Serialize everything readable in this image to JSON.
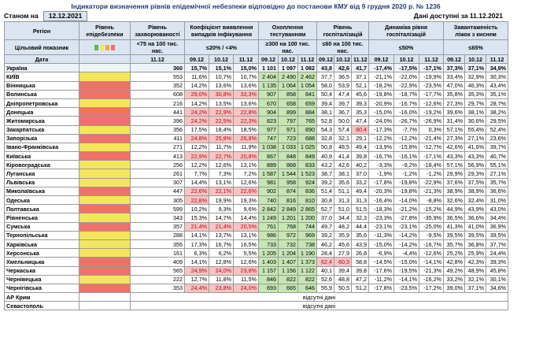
{
  "header": {
    "title": "Індикатори визначення рівнів епідемічної небезпеки відповідно до постанови КМУ від 9 грудня 2020 р. № 1236",
    "as_of_label": "Станом на",
    "as_of": "12.12.2021",
    "available": "Дані доступні за 11.12.2021"
  },
  "table": {
    "columns": [
      "Регіон",
      "Рівень епідебезпеки",
      "Рівень захворюваності",
      "Коефіцієнт виявлення випадків інфікування",
      "Охоплення тестуванням",
      "Рівень госпіталізацій",
      "Динаміка рівня госпіталізацій",
      "Завантаженість ліжок з киснем"
    ],
    "target_label": "Цільовий показник",
    "targets": [
      "<75 на 100 тис. нас.",
      "≤20% / <4%",
      "≥300 на 100 тис. нас.",
      "≤60 на 100 тис. нас.",
      "≤50%",
      "≤65%"
    ],
    "date_label": "Дата",
    "dates": [
      "11.12",
      "09.12",
      "10.12",
      "11.12",
      "09.12",
      "10.12",
      "11.12",
      "09.12",
      "10.12",
      "11.12",
      "09.12",
      "10.12",
      "11.12",
      "09.12",
      "10.12",
      "11.12"
    ],
    "rows": [
      {
        "region": "Україна",
        "values": [
          "360",
          "15,7%",
          "15,1%",
          "15,0%",
          "1 101",
          "1 097",
          "1 082",
          "43,8",
          "42,6",
          "41,7",
          "-17,4%",
          "-17,5%",
          "-17,1%",
          "37,3%",
          "37,1%",
          "34,9%"
        ]
      },
      {
        "region": "КИЇВ",
        "level": "#f3e65a",
        "values": [
          "553",
          "11,6%",
          "10,7%",
          "10,7%",
          "2 404",
          "2 490",
          "2 462",
          "37,7",
          "36,5",
          "37,1",
          "-21,1%",
          "-22,0%",
          "-19,9%",
          "33,4%",
          "32,9%",
          "30,3%"
        ]
      },
      {
        "region": "Вінницька",
        "level": "#f0706a",
        "values": [
          "352",
          "14,2%",
          "13,6%",
          "13,6%",
          "1 135",
          "1 064",
          "1 054",
          "58,0",
          "53,9",
          "52,1",
          "-18,2%",
          "-22,9%",
          "-23,5%",
          "47,0%",
          "46,3%",
          "43,4%"
        ]
      },
      {
        "region": "Волинська",
        "level": "#f0706a",
        "pink": [
          1,
          2,
          3
        ],
        "values": [
          "608",
          "29,0%",
          "30,8%",
          "32,3%",
          "907",
          "858",
          "841",
          "50,4",
          "47,4",
          "45,6",
          "-19,8%",
          "-18,7%",
          "-17,7%",
          "35,8%",
          "35,3%",
          "35,1%"
        ]
      },
      {
        "region": "Дніпропетровська",
        "level": "#f3e65a",
        "values": [
          "216",
          "14,2%",
          "13,5%",
          "13,6%",
          "670",
          "658",
          "659",
          "39,4",
          "39,7",
          "39,3",
          "-20,9%",
          "-16,7%",
          "-12,6%",
          "27,3%",
          "29,7%",
          "28,7%"
        ]
      },
      {
        "region": "Донецька",
        "level": "#f0706a",
        "pink": [
          1,
          2,
          3
        ],
        "values": [
          "441",
          "24,2%",
          "22,9%",
          "22,8%",
          "904",
          "899",
          "884",
          "38,1",
          "36,7",
          "35,3",
          "-15,0%",
          "-16,0%",
          "-19,2%",
          "39,6%",
          "38,1%",
          "38,2%"
        ]
      },
      {
        "region": "Житомирська",
        "level": "#f0706a",
        "pink": [
          1,
          2,
          3
        ],
        "values": [
          "396",
          "24,2%",
          "22,5%",
          "22,3%",
          "823",
          "797",
          "765",
          "52,8",
          "50,0",
          "47,4",
          "-24,0%",
          "-26,7%",
          "-26,9%",
          "31,4%",
          "30,6%",
          "29,5%"
        ]
      },
      {
        "region": "Закарпатська",
        "level": "#f3e65a",
        "pink": [
          9
        ],
        "values": [
          "356",
          "17,5%",
          "18,4%",
          "18,5%",
          "977",
          "971",
          "890",
          "54,3",
          "57,4",
          "60,4",
          "-17,3%",
          "-7,7%",
          "0,3%",
          "57,1%",
          "55,4%",
          "52,4%"
        ]
      },
      {
        "region": "Запорізька",
        "level": "#f0706a",
        "pink": [
          1,
          2,
          3
        ],
        "values": [
          "411",
          "24,8%",
          "25,8%",
          "26,8%",
          "747",
          "723",
          "688",
          "32,8",
          "32,1",
          "29,1",
          "-12,2%",
          "-12,2%",
          "-21,4%",
          "27,3%",
          "27,1%",
          "23,6%"
        ]
      },
      {
        "region": "Івано-Франківська",
        "level": "#f3e65a",
        "values": [
          "271",
          "12,2%",
          "11,7%",
          "11,9%",
          "1 038",
          "1 033",
          "1 025",
          "50,8",
          "48,5",
          "49,4",
          "-13,9%",
          "-15,8%",
          "-12,7%",
          "42,6%",
          "41,6%",
          "39,7%"
        ]
      },
      {
        "region": "Київська",
        "level": "#f0706a",
        "pink": [
          1,
          2,
          3
        ],
        "values": [
          "413",
          "22,9%",
          "22,7%",
          "20,8%",
          "867",
          "848",
          "849",
          "40,9",
          "41,4",
          "39,8",
          "-16,7%",
          "-16,1%",
          "-17,1%",
          "43,3%",
          "43,3%",
          "40,7%"
        ]
      },
      {
        "region": "Кіровоградська",
        "level": "#f3e65a",
        "values": [
          "256",
          "12,2%",
          "12,6%",
          "13,1%",
          "889",
          "868",
          "833",
          "43,2",
          "42,6",
          "40,2",
          "-3,3%",
          "-9,2%",
          "-18,4%",
          "57,1%",
          "56,9%",
          "55,1%"
        ]
      },
      {
        "region": "Луганська",
        "level": "#f3e65a",
        "values": [
          "261",
          "7,7%",
          "7,3%",
          "7,2%",
          "1 587",
          "1 544",
          "1 523",
          "38,7",
          "38,1",
          "37,0",
          "-1,9%",
          "-1,2%",
          "-1,2%",
          "29,9%",
          "29,3%",
          "27,1%"
        ]
      },
      {
        "region": "Львівська",
        "level": "#f3e65a",
        "values": [
          "307",
          "14,4%",
          "13,1%",
          "12,6%",
          "981",
          "958",
          "924",
          "39,2",
          "35,6",
          "33,2",
          "-17,8%",
          "-19,8%",
          "-22,9%",
          "37,6%",
          "37,5%",
          "35,7%"
        ]
      },
      {
        "region": "Миколаївська",
        "level": "#f0706a",
        "pink": [
          1,
          2,
          3
        ],
        "values": [
          "447",
          "22,6%",
          "22,1%",
          "22,6%",
          "902",
          "874",
          "836",
          "51,4",
          "51,1",
          "49,4",
          "-20,3%",
          "-19,8%",
          "-21,3%",
          "38,9%",
          "38,9%",
          "36,6%"
        ]
      },
      {
        "region": "Одеська",
        "level": "#f3e65a",
        "pink": [
          1
        ],
        "values": [
          "305",
          "22,8%",
          "19,9%",
          "19,3%",
          "740",
          "816",
          "810",
          "30,8",
          "31,3",
          "31,3",
          "-16,4%",
          "-14,0%",
          "-8,8%",
          "32,6%",
          "32,4%",
          "31,0%"
        ]
      },
      {
        "region": "Полтавська",
        "level": "#f0706a",
        "values": [
          "599",
          "10,2%",
          "9,3%",
          "9,6%",
          "2 842",
          "2 849",
          "2 865",
          "52,7",
          "51,0",
          "51,5",
          "-18,3%",
          "-21,2%",
          "-15,2%",
          "44,9%",
          "43,9%",
          "43,0%"
        ]
      },
      {
        "region": "Рівненська",
        "level": "#f3e65a",
        "values": [
          "343",
          "15,3%",
          "14,7%",
          "14,4%",
          "1 249",
          "1 201",
          "1 200",
          "37,0",
          "34,4",
          "32,3",
          "-23,3%",
          "-27,8%",
          "-35,9%",
          "36,5%",
          "36,6%",
          "34,4%"
        ]
      },
      {
        "region": "Сумська",
        "level": "#f0706a",
        "pink": [
          1,
          2,
          3
        ],
        "values": [
          "357",
          "21,4%",
          "21,4%",
          "20,5%",
          "761",
          "768",
          "744",
          "49,7",
          "48,2",
          "44,4",
          "-23,1%",
          "-23,1%",
          "-25,0%",
          "41,3%",
          "41,0%",
          "36,9%"
        ]
      },
      {
        "region": "Тернопільська",
        "level": "#f3e65a",
        "values": [
          "288",
          "14,1%",
          "13,7%",
          "13,1%",
          "986",
          "972",
          "969",
          "39,2",
          "35,9",
          "35,6",
          "-11,3%",
          "-14,2%",
          "-9,5%",
          "39,5%",
          "39,5%",
          "39,5%"
        ]
      },
      {
        "region": "Харківська",
        "level": "#f3e65a",
        "values": [
          "355",
          "17,3%",
          "16,7%",
          "16,5%",
          "733",
          "732",
          "738",
          "46,2",
          "45,6",
          "43,9",
          "-15,0%",
          "-14,2%",
          "-16,7%",
          "35,7%",
          "36,8%",
          "37,7%"
        ]
      },
      {
        "region": "Херсонська",
        "level": "#f3e65a",
        "values": [
          "161",
          "6,3%",
          "6,2%",
          "5,5%",
          "1 205",
          "1 204",
          "1 190",
          "28,4",
          "27,9",
          "26,8",
          "-6,9%",
          "-4,4%",
          "-12,6%",
          "25,2%",
          "25,9%",
          "24,4%"
        ]
      },
      {
        "region": "Хмельницька",
        "level": "#f0706a",
        "pink": [
          7,
          8
        ],
        "values": [
          "409",
          "14,1%",
          "12,8%",
          "12,6%",
          "1 403",
          "1 407",
          "1 373",
          "62,4",
          "60,3",
          "58,8",
          "-14,5%",
          "-15,0%",
          "-14,1%",
          "42,8%",
          "42,3%",
          "39,3%"
        ]
      },
      {
        "region": "Черкаська",
        "level": "#f0706a",
        "pink": [
          1,
          2,
          3
        ],
        "values": [
          "565",
          "24,9%",
          "24,0%",
          "23,8%",
          "1 157",
          "1 156",
          "1 122",
          "40,1",
          "39,4",
          "39,8",
          "-17,6%",
          "-19,5%",
          "-21,3%",
          "49,2%",
          "48,9%",
          "45,8%"
        ]
      },
      {
        "region": "Чернівецька",
        "level": "#f3e65a",
        "values": [
          "222",
          "12,7%",
          "11,8%",
          "11,5%",
          "846",
          "822",
          "822",
          "52,6",
          "48,8",
          "47,2",
          "-11,2%",
          "-14,1%",
          "-16,2%",
          "33,2%",
          "32,1%",
          "30,1%"
        ]
      },
      {
        "region": "Чернігівська",
        "level": "#f0706a",
        "pink": [
          1,
          2,
          3
        ],
        "values": [
          "353",
          "24,4%",
          "23,8%",
          "24,0%",
          "693",
          "665",
          "646",
          "55,9",
          "50,5",
          "51,2",
          "-17,8%",
          "-23,5%",
          "-17,2%",
          "39,0%",
          "37,1%",
          "34,6%"
        ]
      },
      {
        "region": "АР Крим",
        "note": "відсутні дані"
      },
      {
        "region": "Севастополь",
        "note": "відсутні дані"
      }
    ]
  }
}
